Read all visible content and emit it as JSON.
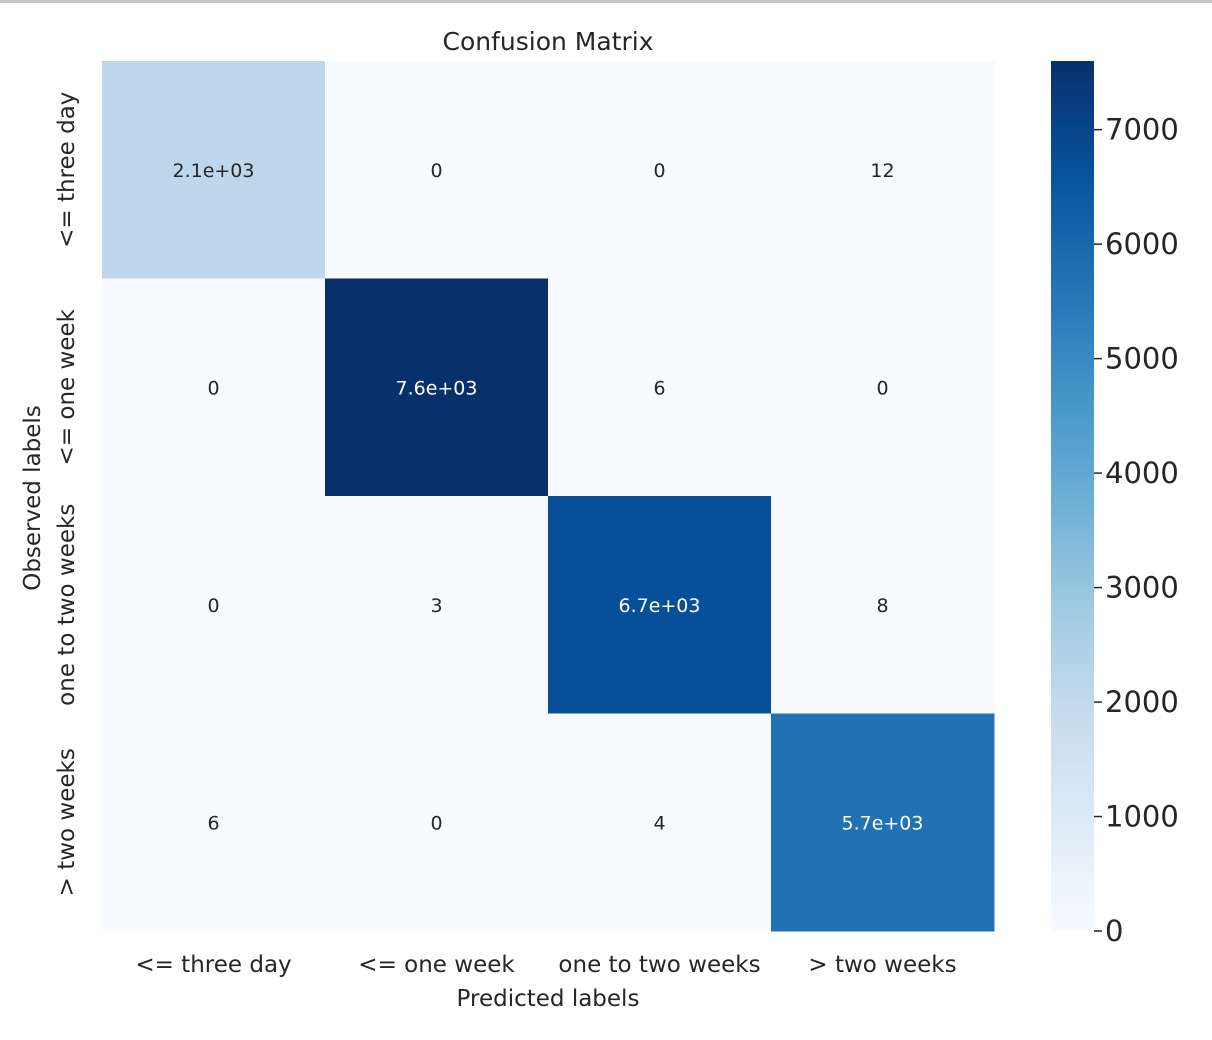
{
  "chart_data": {
    "type": "heatmap",
    "title": "Confusion Matrix",
    "xlabel": "Predicted labels",
    "ylabel": "Observed labels",
    "x_categories": [
      "<= three day",
      "<= one week",
      "one to two weeks",
      "> two weeks"
    ],
    "y_categories": [
      "<= three day",
      "<= one week",
      "one to two weeks",
      "> two weeks"
    ],
    "values": [
      [
        2100,
        0,
        0,
        12
      ],
      [
        0,
        7600,
        6,
        0
      ],
      [
        0,
        3,
        6700,
        8
      ],
      [
        6,
        0,
        4,
        5700
      ]
    ],
    "annotations": [
      [
        "2.1e+03",
        "0",
        "0",
        "12"
      ],
      [
        "0",
        "7.6e+03",
        "6",
        "0"
      ],
      [
        "0",
        "3",
        "6.7e+03",
        "8"
      ],
      [
        "6",
        "0",
        "4",
        "5.7e+03"
      ]
    ],
    "colormap": "Blues",
    "colorbar": {
      "min": 0,
      "max": 7600,
      "ticks": [
        "0",
        "1000",
        "2000",
        "3000",
        "4000",
        "5000",
        "6000",
        "7000"
      ],
      "tick_values": [
        0,
        1000,
        2000,
        3000,
        4000,
        5000,
        6000,
        7000
      ]
    },
    "grid": false
  }
}
